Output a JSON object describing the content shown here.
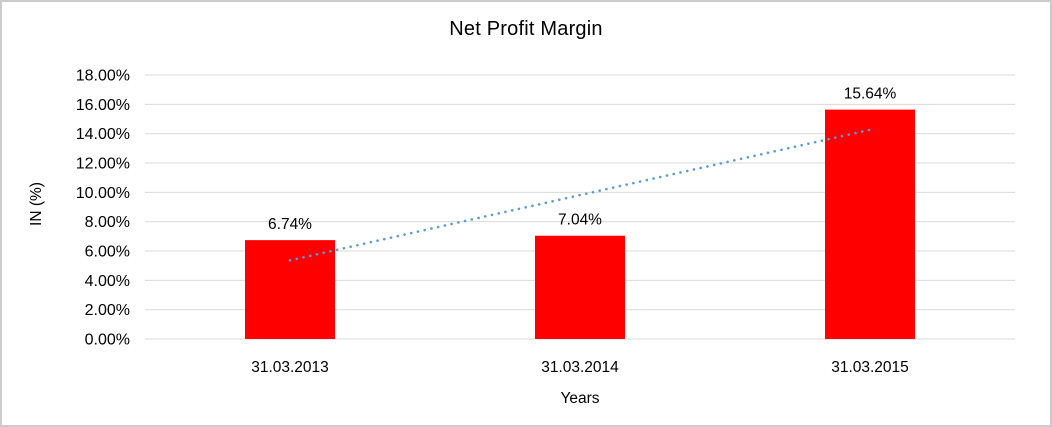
{
  "window": {
    "background": "#ffffff",
    "frame_border_color": "#cbcbcb"
  },
  "chart_data": {
    "type": "bar",
    "title": "Net Profit Margin",
    "xlabel": "Years",
    "ylabel": "IN (%)",
    "categories": [
      "31.03.2013",
      "31.03.2014",
      "31.03.2015"
    ],
    "values": [
      6.74,
      7.04,
      15.64
    ],
    "data_labels": [
      "6.74%",
      "7.04%",
      "15.64%"
    ],
    "ytick_labels": [
      "0.00%",
      "2.00%",
      "4.00%",
      "6.00%",
      "8.00%",
      "10.00%",
      "12.00%",
      "14.00%",
      "16.00%",
      "18.00%"
    ],
    "ytick_values": [
      0,
      2,
      4,
      6,
      8,
      10,
      12,
      14,
      16,
      18
    ],
    "ylim": [
      0,
      18
    ],
    "grid": true,
    "legend": "none",
    "bar_color": "#ff0000",
    "gridline_color": "#d9d9d9",
    "text_color": "#000000",
    "trendline": {
      "type": "linear",
      "style": "dotted",
      "color": "#5b9bd5",
      "start_value": 5.36,
      "end_value": 14.26
    }
  }
}
